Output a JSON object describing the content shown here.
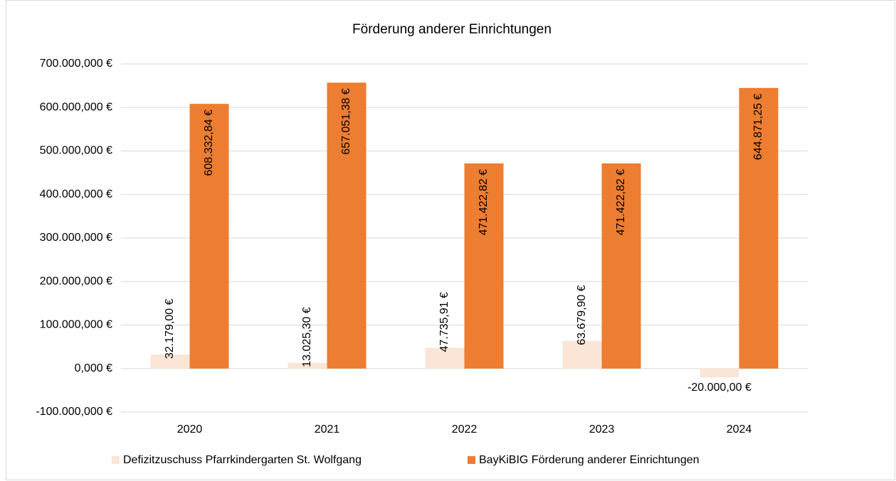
{
  "chart_data": {
    "type": "bar",
    "title": "Förderung anderer Einrichtungen",
    "categories": [
      "2020",
      "2021",
      "2022",
      "2023",
      "2024"
    ],
    "series": [
      {
        "name": "Defizitzuschuss Pfarrkindergarten St. Wolfgang",
        "color": "#fbe5d6",
        "values": [
          32179,
          13025.3,
          47735.91,
          63679.9,
          -20000
        ],
        "value_labels": [
          "32.179,00 €",
          "13.025,30 €",
          "47.735,91 €",
          "63.679,90 €",
          "-20.000,00 €"
        ]
      },
      {
        "name": "BayKiBIG Förderung anderer Einrichtungen",
        "color": "#ed7d31",
        "values": [
          608332.84,
          657051.38,
          471422.82,
          471422.82,
          644871.25
        ],
        "value_labels": [
          "608.332,84 €",
          "657.051,38 €",
          "471.422,82 €",
          "471.422,82 €",
          "644.871,25 €"
        ]
      }
    ],
    "ylim": [
      -100000,
      700000
    ],
    "yticks": [
      {
        "value": -100000,
        "label": "-100.000,000 €"
      },
      {
        "value": 0,
        "label": "0,000 €"
      },
      {
        "value": 100000,
        "label": "100.000,000 €"
      },
      {
        "value": 200000,
        "label": "200.000,000 €"
      },
      {
        "value": 300000,
        "label": "300.000,000 €"
      },
      {
        "value": 400000,
        "label": "400.000,000 €"
      },
      {
        "value": 500000,
        "label": "500.000,000 €"
      },
      {
        "value": 600000,
        "label": "600.000,000 €"
      },
      {
        "value": 700000,
        "label": "700.000,000 €"
      }
    ],
    "grid": true,
    "legend": "bottom"
  }
}
